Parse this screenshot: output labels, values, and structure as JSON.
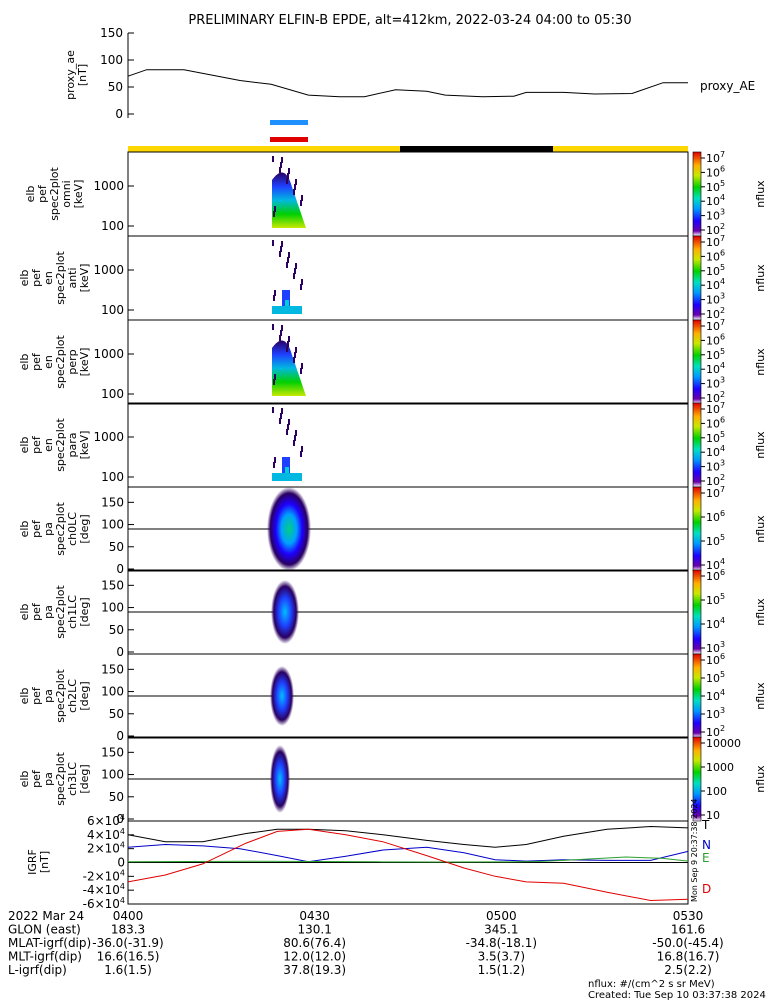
{
  "title": "PRELIMINARY ELFIN-B EPDE, alt=412km, 2022-03-24 04:00 to 05:30",
  "colors": {
    "black": "#000000",
    "yellow": "#ffd700",
    "blue": "#1e90ff",
    "red": "#e00000",
    "green": "#2ca02c",
    "navy": "#0000c8"
  },
  "chart_data": [
    {
      "type": "line",
      "ylabel": "proxy_ae\n[nT]",
      "ylim": [
        0,
        150
      ],
      "yticks": [
        "0",
        "50",
        "100",
        "150"
      ],
      "series": [
        {
          "name": "proxy_AE",
          "x": [
            0,
            3,
            9,
            18,
            23,
            29,
            34,
            38,
            43,
            48,
            51,
            57,
            62,
            64,
            70,
            75,
            81,
            86,
            90
          ],
          "values": [
            70,
            82,
            82,
            62,
            55,
            35,
            32,
            32,
            45,
            42,
            35,
            32,
            33,
            40,
            40,
            37,
            38,
            58,
            58
          ]
        }
      ]
    },
    {
      "type": "heatmap",
      "ylabel": "elb\npef\nspec2plot\nomni\n[keV]",
      "yscale": "log",
      "yticks": [
        "100",
        "1000"
      ],
      "colorbar_label": "nflux",
      "colorbar_ticks": [
        "10^2",
        "10^3",
        "10^4",
        "10^5",
        "10^6",
        "10^7"
      ]
    },
    {
      "type": "heatmap",
      "ylabel": "elb\npef\nen\nspec2plot\nanti\n[keV]",
      "yscale": "log",
      "yticks": [
        "100",
        "1000"
      ],
      "colorbar_label": "nflux",
      "colorbar_ticks": [
        "10^2",
        "10^3",
        "10^4",
        "10^5",
        "10^6",
        "10^7"
      ]
    },
    {
      "type": "heatmap",
      "ylabel": "elb\npef\nen\nspec2plot\nperp\n[keV]",
      "yscale": "log",
      "yticks": [
        "100",
        "1000"
      ],
      "colorbar_label": "nflux",
      "colorbar_ticks": [
        "10^2",
        "10^3",
        "10^4",
        "10^5",
        "10^6",
        "10^7"
      ]
    },
    {
      "type": "heatmap",
      "ylabel": "elb\npef\nen\nspec2plot\npara\n[keV]",
      "yscale": "log",
      "yticks": [
        "100",
        "1000"
      ],
      "colorbar_label": "nflux",
      "colorbar_ticks": [
        "10^2",
        "10^3",
        "10^4",
        "10^5",
        "10^6",
        "10^7"
      ]
    },
    {
      "type": "heatmap",
      "ylabel": "elb\npef\npa\nspec2plot\nch0LC\n[deg]",
      "ylim": [
        0,
        180
      ],
      "yticks": [
        "0",
        "50",
        "100",
        "150"
      ],
      "colorbar_label": "nflux",
      "colorbar_ticks": [
        "10^4",
        "10^5",
        "10^6",
        "10^7"
      ]
    },
    {
      "type": "heatmap",
      "ylabel": "elb\npef\npa\nspec2plot\nch1LC\n[deg]",
      "ylim": [
        0,
        180
      ],
      "yticks": [
        "0",
        "50",
        "100",
        "150"
      ],
      "colorbar_label": "nflux",
      "colorbar_ticks": [
        "10^3",
        "10^4",
        "10^5",
        "10^6"
      ]
    },
    {
      "type": "heatmap",
      "ylabel": "elb\npef\npa\nspec2plot\nch2LC\n[deg]",
      "ylim": [
        0,
        180
      ],
      "yticks": [
        "0",
        "50",
        "100",
        "150"
      ],
      "colorbar_label": "nflux",
      "colorbar_ticks": [
        "10^2",
        "10^3",
        "10^4",
        "10^5",
        "10^6"
      ]
    },
    {
      "type": "heatmap",
      "ylabel": "elb\npef\npa\nspec2plot\nch3LC\n[deg]",
      "ylim": [
        0,
        180
      ],
      "yticks": [
        "0",
        "50",
        "100",
        "150"
      ],
      "colorbar_label": "nflux",
      "colorbar_ticks": [
        "10",
        "100",
        "1000",
        "10000"
      ]
    },
    {
      "type": "line",
      "ylabel": "IGRF\n[nT]",
      "ylim": [
        -60000,
        60000
      ],
      "yticks": [
        "-6×10^4",
        "-4×10^4",
        "-2×10^4",
        "0",
        "2×10^4",
        "4×10^4",
        "6×10^4"
      ],
      "series": [
        {
          "name": "T",
          "x": [
            0,
            6,
            12,
            19,
            24,
            29,
            35,
            41,
            48,
            54,
            59,
            64,
            70,
            77,
            84,
            90
          ],
          "values": [
            40000,
            30000,
            30000,
            42000,
            48000,
            48000,
            46000,
            40000,
            32000,
            26000,
            22000,
            26000,
            38000,
            48000,
            52000,
            50000
          ]
        },
        {
          "name": "N",
          "x": [
            0,
            6,
            12,
            18,
            24,
            29,
            35,
            41,
            48,
            54,
            59,
            64,
            70,
            77,
            84,
            90
          ],
          "values": [
            22000,
            26000,
            24000,
            20000,
            10000,
            1000,
            9000,
            18000,
            22000,
            14000,
            4000,
            2000,
            4000,
            3000,
            3000,
            16000
          ]
        },
        {
          "name": "E",
          "x": [
            0,
            10,
            20,
            30,
            40,
            50,
            60,
            66,
            70,
            80,
            86,
            90
          ],
          "values": [
            1000,
            1500,
            1800,
            1500,
            1000,
            700,
            800,
            1500,
            3000,
            8000,
            6000,
            2000
          ]
        },
        {
          "name": "D",
          "x": [
            0,
            6,
            12,
            19,
            24,
            29,
            35,
            41,
            48,
            54,
            59,
            64,
            70,
            77,
            84,
            90
          ],
          "values": [
            -28000,
            -18000,
            -2000,
            28000,
            45000,
            48000,
            40000,
            30000,
            10000,
            -8000,
            -20000,
            -28000,
            -30000,
            -43000,
            -55000,
            -53000
          ]
        }
      ]
    }
  ],
  "bars": {
    "blue_label": "",
    "red_label": ""
  },
  "rotated_small": "Mon Sep 9 20:37:38 2024",
  "footer": {
    "rows": [
      {
        "label": "2022 Mar 24",
        "v1": "0400",
        "v2": "0430",
        "v3": "0500",
        "v4": "0530"
      },
      {
        "label": "GLON (east)",
        "v1": "183.3",
        "v2": "130.1",
        "v3": "345.1",
        "v4": "161.6"
      },
      {
        "label": "MLAT-igrf(dip)",
        "v1": "-36.0(-31.9)",
        "v2": "80.6(76.4)",
        "v3": "-34.8(-18.1)",
        "v4": "-50.0(-45.4)"
      },
      {
        "label": "MLT-igrf(dip)",
        "v1": "16.6(16.5)",
        "v2": "12.0(12.0)",
        "v3": "3.5(3.7)",
        "v4": "16.8(16.7)"
      },
      {
        "label": "L-igrf(dip)",
        "v1": "1.6(1.5)",
        "v2": "37.8(19.3)",
        "v3": "1.5(1.2)",
        "v4": "2.5(2.2)"
      }
    ],
    "nflux_note": "nflux: #/(cm^2 s sr MeV)",
    "created": "Created: Tue Sep 10 03:37:38 2024"
  }
}
